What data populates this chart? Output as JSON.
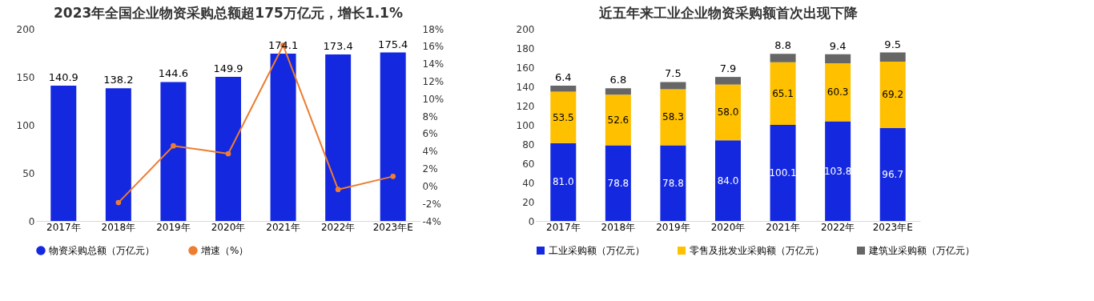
{
  "chart_data": [
    {
      "type": "bar",
      "title": "2023年全国企业物资采购总额超175万亿元，增长1.1%",
      "categories": [
        "2017年",
        "2018年",
        "2019年",
        "2020年",
        "2021年",
        "2022年",
        "2023年E"
      ],
      "series": [
        {
          "name": "物资采购总额（万亿元）",
          "color": "#1428e0",
          "values": [
            140.9,
            138.2,
            144.6,
            149.9,
            174.1,
            173.4,
            175.4
          ],
          "value_labels": [
            "140.9",
            "138.2",
            "144.6",
            "149.9",
            "174.1",
            "173.4",
            "175.4"
          ]
        },
        {
          "name": "增速（%）",
          "type": "line",
          "axis": "y2",
          "color": "#ed7d31",
          "values": [
            null,
            -1.9,
            4.6,
            3.7,
            16.1,
            -0.4,
            1.1
          ]
        }
      ],
      "ylim": [
        0,
        200
      ],
      "yticks": [
        0,
        50,
        100,
        150,
        200
      ],
      "y2lim": [
        -4,
        18
      ],
      "y2ticks": [
        {
          "value": -4,
          "label": "-4%"
        },
        {
          "value": -2,
          "label": "-2%"
        },
        {
          "value": 0,
          "label": "0%"
        },
        {
          "value": 2,
          "label": "2%"
        },
        {
          "value": 4,
          "label": "4%"
        },
        {
          "value": 6,
          "label": "6%"
        },
        {
          "value": 8,
          "label": "8%"
        },
        {
          "value": 10,
          "label": "10%"
        },
        {
          "value": 12,
          "label": "12%"
        },
        {
          "value": 14,
          "label": "14%"
        },
        {
          "value": 16,
          "label": "16%"
        },
        {
          "value": 18,
          "label": "18%"
        }
      ],
      "grid": false,
      "legend": "bottom",
      "marker": "circle"
    },
    {
      "type": "bar",
      "stacked": true,
      "title": "近五年来工业企业物资采购额首次出现下降",
      "categories": [
        "2017年",
        "2018年",
        "2019年",
        "2020年",
        "2021年",
        "2022年",
        "2023年E"
      ],
      "series": [
        {
          "name": "工业采购额（万亿元）",
          "color": "#1428e0",
          "values": [
            81.0,
            78.8,
            78.8,
            84.0,
            100.1,
            103.8,
            96.7
          ],
          "value_labels": [
            "81.0",
            "78.8",
            "78.8",
            "84.0",
            "100.1",
            "103.8",
            "96.7"
          ]
        },
        {
          "name": "零售及批发业采购额（万亿元）",
          "color": "#ffc000",
          "values": [
            53.5,
            52.6,
            58.3,
            58.0,
            65.1,
            60.3,
            69.2
          ],
          "value_labels": [
            "53.5",
            "52.6",
            "58.3",
            "58.0",
            "65.1",
            "60.3",
            "69.2"
          ]
        },
        {
          "name": "建筑业采购额（万亿元）",
          "color": "#666666",
          "values": [
            6.4,
            6.8,
            7.5,
            7.9,
            8.8,
            9.4,
            9.5
          ],
          "value_labels": [
            "6.4",
            "6.8",
            "7.5",
            "7.9",
            "8.8",
            "9.4",
            "9.5"
          ]
        }
      ],
      "ylim": [
        0,
        200
      ],
      "yticks": [
        0,
        20,
        40,
        60,
        80,
        100,
        120,
        140,
        160,
        180,
        200
      ],
      "grid": false,
      "legend": "bottom"
    }
  ]
}
